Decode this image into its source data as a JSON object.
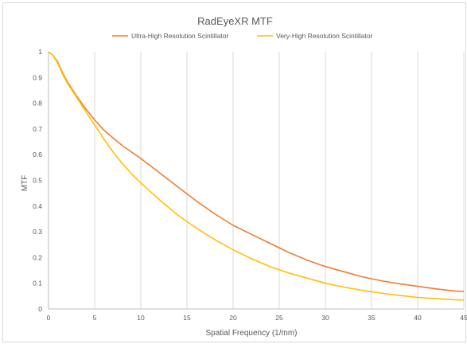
{
  "chart_data": {
    "type": "line",
    "title": "RadEyeXR MTF",
    "xlabel": "Spatial Frequency (1/mm)",
    "ylabel": "MTF",
    "xlim": [
      0,
      45
    ],
    "ylim": [
      0,
      1
    ],
    "x_ticks": [
      0,
      5,
      10,
      15,
      20,
      25,
      30,
      35,
      40,
      45
    ],
    "y_ticks": [
      "0",
      "0.1",
      "0.2",
      "0.3",
      "0.4",
      "0.5",
      "0.6",
      "0.7",
      "0.8",
      "0.9",
      "1"
    ],
    "grid": "vertical gridlines",
    "legend_position": "top",
    "series": [
      {
        "name": "Ultra-High Resolution Scintillator",
        "color": "#ed7d31",
        "x": [
          0,
          0.5,
          1,
          1.5,
          2,
          3,
          4,
          5,
          6,
          7,
          8,
          9,
          10,
          12,
          14,
          16,
          18,
          20,
          22,
          24,
          26,
          28,
          30,
          32,
          34,
          36,
          38,
          40,
          42,
          44,
          45
        ],
        "y": [
          1.0,
          0.985,
          0.96,
          0.92,
          0.885,
          0.83,
          0.78,
          0.735,
          0.695,
          0.665,
          0.635,
          0.61,
          0.585,
          0.53,
          0.475,
          0.42,
          0.37,
          0.325,
          0.29,
          0.255,
          0.22,
          0.19,
          0.165,
          0.145,
          0.125,
          0.11,
          0.098,
          0.088,
          0.078,
          0.07,
          0.068
        ]
      },
      {
        "name": "Very-High Resolution Scintillator",
        "color": "#ffc000",
        "x": [
          0,
          0.5,
          1,
          1.5,
          2,
          3,
          4,
          5,
          6,
          7,
          8,
          9,
          10,
          12,
          14,
          16,
          18,
          20,
          22,
          24,
          26,
          28,
          30,
          32,
          34,
          36,
          38,
          40,
          42,
          44,
          45
        ],
        "y": [
          1.0,
          0.985,
          0.955,
          0.915,
          0.88,
          0.825,
          0.77,
          0.715,
          0.66,
          0.61,
          0.565,
          0.525,
          0.49,
          0.425,
          0.365,
          0.315,
          0.27,
          0.23,
          0.195,
          0.165,
          0.14,
          0.12,
          0.1,
          0.085,
          0.072,
          0.062,
          0.053,
          0.045,
          0.04,
          0.036,
          0.035
        ]
      }
    ]
  }
}
